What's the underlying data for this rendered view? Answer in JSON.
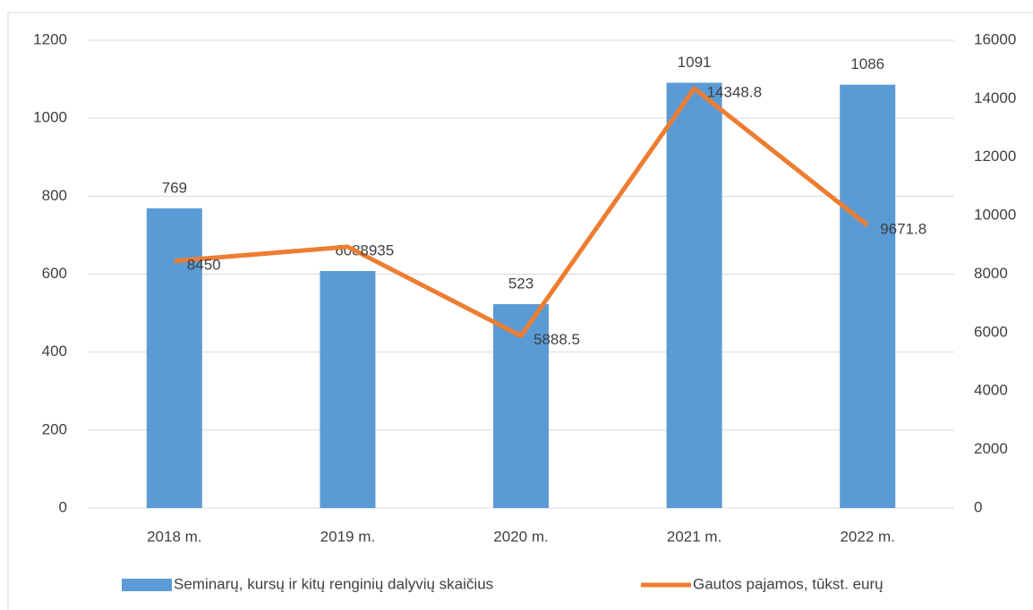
{
  "chart_data": {
    "type": "bar",
    "categories": [
      "2018 m.",
      "2019 m.",
      "2020 m.",
      "2021 m.",
      "2022 m."
    ],
    "series": [
      {
        "name": "Seminarų, kursų ir kitų renginių dalyvių skaičius",
        "color": "#5b9bd5",
        "values": [
          769,
          608,
          523,
          1091,
          1086
        ]
      },
      {
        "name": "Gautos pajamos, tūkst. eurų",
        "color": "#ed7d31",
        "type": "line",
        "axis": "y2",
        "values": [
          8450,
          8935,
          5888.5,
          14348.8,
          9671.8
        ]
      }
    ],
    "ylim": [
      0,
      1200
    ],
    "yticks": [
      0,
      200,
      400,
      600,
      800,
      1000,
      1200
    ],
    "y2lim": [
      0,
      16000
    ],
    "y2ticks": [
      0,
      2000,
      4000,
      6000,
      8000,
      10000,
      12000,
      14000,
      16000
    ],
    "grid": true,
    "legend": "bottom"
  }
}
